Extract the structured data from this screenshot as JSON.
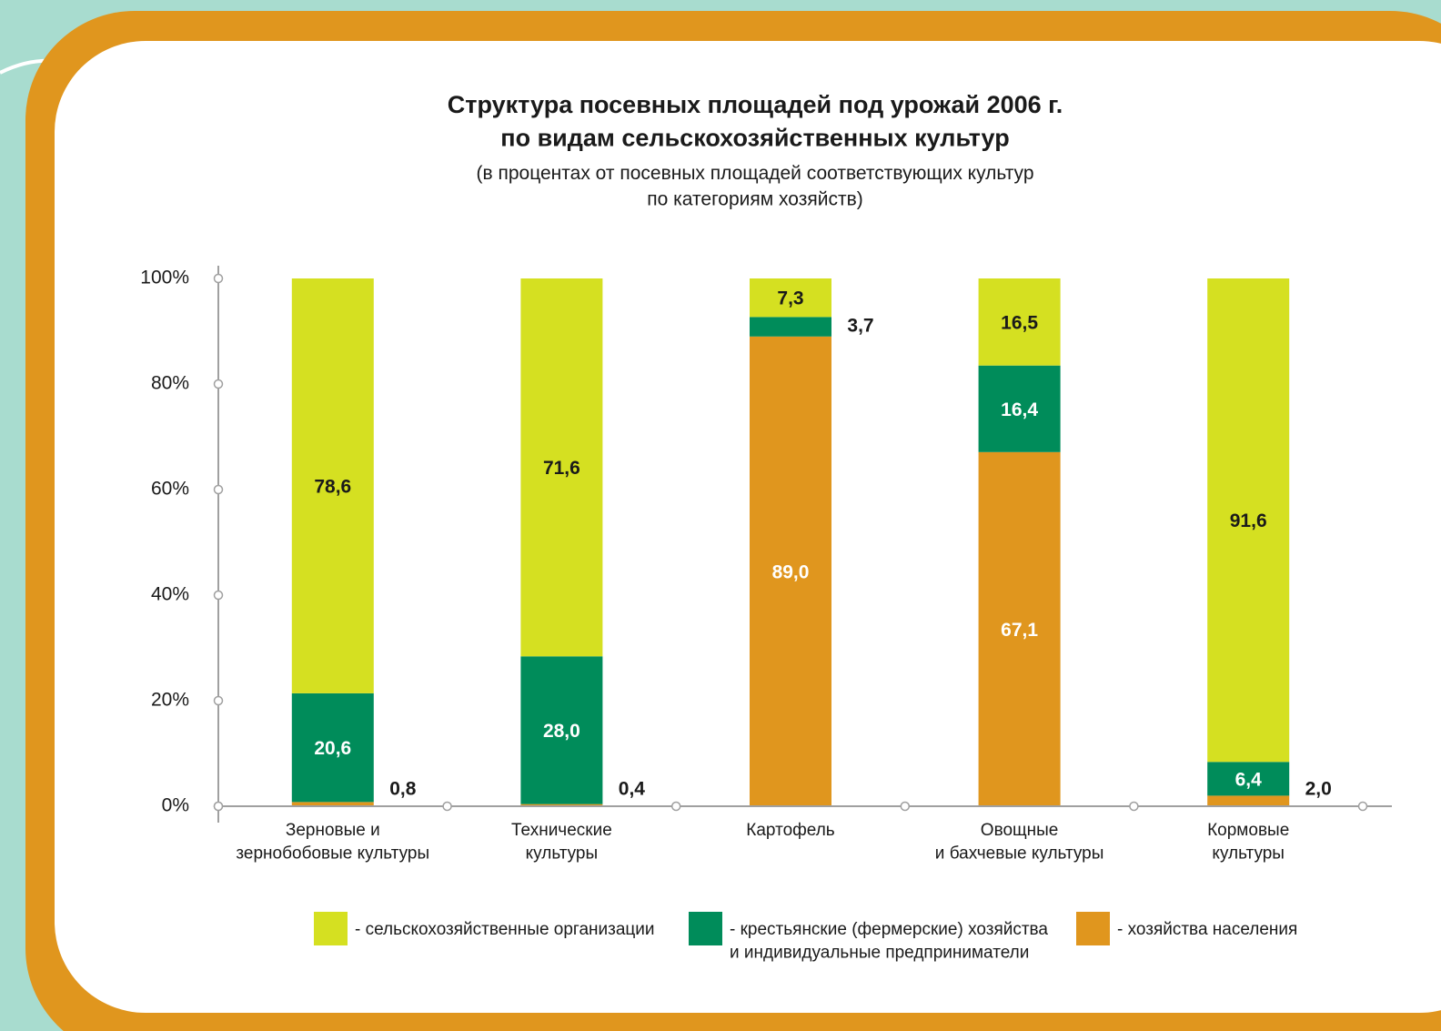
{
  "chart_data": {
    "type": "stacked_bar",
    "title": "Структура посевных площадей под урожай 2006 г.\nпо видам сельскохозяйственных культур",
    "subtitle": "(в процентах от посевных площадей соответствующих культур\nпо категориям хозяйств)",
    "categories": [
      "Зерновые и\nзернобобовые культуры",
      "Технические\nкультуры",
      "Картофель",
      "Овощные\nи бахчевые культуры",
      "Кормовые\nкультуры"
    ],
    "series": [
      {
        "name": "- сельскохозяйственные организации",
        "color": "#d5e021",
        "values": [
          78.6,
          71.6,
          7.3,
          16.5,
          91.6
        ],
        "value_labels": [
          "78,6",
          "71,6",
          "7,3",
          "16,5",
          "91,6"
        ]
      },
      {
        "name": "- крестьянские (фермерские) хозяйства\nи индивидуальные предприниматели",
        "color": "#008c5a",
        "values": [
          20.6,
          28.0,
          3.7,
          16.4,
          6.4
        ],
        "value_labels": [
          "20,6",
          "28,0",
          "3,7",
          "16,4",
          "6,4"
        ]
      },
      {
        "name": "- хозяйства населения",
        "color": "#e0961e",
        "values": [
          0.8,
          0.4,
          89.0,
          67.1,
          2.0
        ],
        "value_labels": [
          "0,8",
          "0,4",
          "89,0",
          "67,1",
          "2,0"
        ]
      }
    ],
    "ylim": [
      0,
      100
    ],
    "yticks": [
      {
        "value": 0,
        "label": "0%"
      },
      {
        "value": 20,
        "label": "20%"
      },
      {
        "value": 40,
        "label": "40%"
      },
      {
        "value": 60,
        "label": "60%"
      },
      {
        "value": 80,
        "label": "80%"
      },
      {
        "value": 100,
        "label": "100%"
      }
    ]
  }
}
